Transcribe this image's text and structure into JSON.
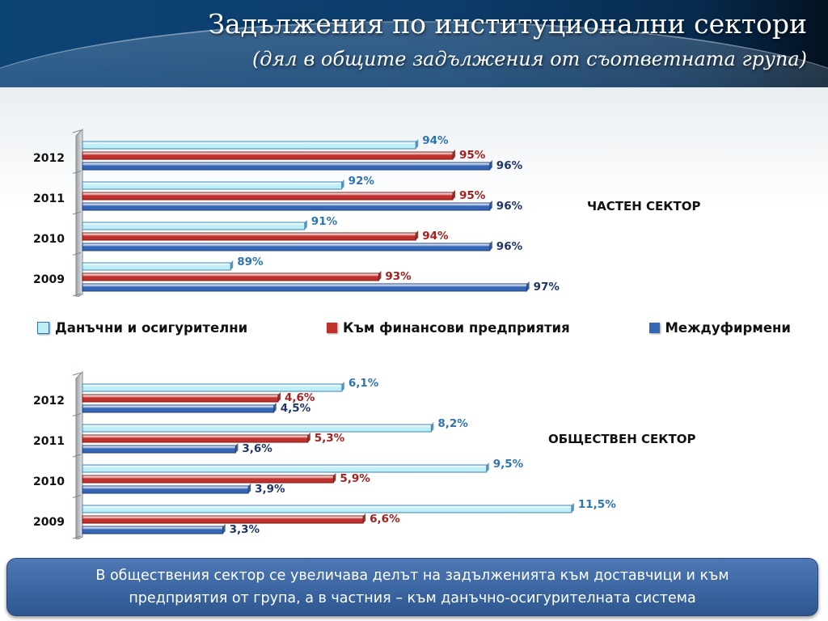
{
  "header": {
    "title": "Задължения по институционални сектори",
    "subtitle": "(дял в общите задължения от съответната група)"
  },
  "colors": {
    "series_tax": "#bfeef6",
    "series_fin": "#c0302c",
    "series_inter": "#3566b6",
    "label_tax": "#2f74ad",
    "label_fin": "#a3201e",
    "label_inter": "#1f3567"
  },
  "legend": [
    {
      "label": "Данъчни и осигурителни",
      "color": "#bfeef6"
    },
    {
      "label": "Към финансови предприятия",
      "color": "#c0302c"
    },
    {
      "label": "Междуфирмени",
      "color": "#3566b6"
    }
  ],
  "chart_data": [
    {
      "type": "bar",
      "orientation": "horizontal",
      "sector_label": "ЧАСТЕН СЕКТОР",
      "categories": [
        "2012",
        "2011",
        "2010",
        "2009"
      ],
      "series": [
        {
          "name": "Данъчни и осигурителни",
          "values": [
            94,
            92,
            91,
            89
          ],
          "labels": [
            "94%",
            "92%",
            "91%",
            "89%"
          ]
        },
        {
          "name": "Към финансови предприятия",
          "values": [
            95,
            95,
            94,
            93
          ],
          "labels": [
            "95%",
            "95%",
            "94%",
            "93%"
          ]
        },
        {
          "name": "Междуфирмени",
          "values": [
            96,
            96,
            96,
            97
          ],
          "labels": [
            "96%",
            "96%",
            "96%",
            "97%"
          ]
        }
      ],
      "grid": false
    },
    {
      "type": "bar",
      "orientation": "horizontal",
      "sector_label": "ОБЩЕСТВЕН СЕКТОР",
      "categories": [
        "2012",
        "2011",
        "2010",
        "2009"
      ],
      "series": [
        {
          "name": "Данъчни и осигурителни",
          "values": [
            6.1,
            8.2,
            9.5,
            11.5
          ],
          "labels": [
            "6,1%",
            "8,2%",
            "9,5%",
            "11,5%"
          ]
        },
        {
          "name": "Към финансови предприятия",
          "values": [
            4.6,
            5.3,
            5.9,
            6.6
          ],
          "labels": [
            "4,6%",
            "5,3%",
            "5,9%",
            "6,6%"
          ]
        },
        {
          "name": "Междуфирмени",
          "values": [
            4.5,
            3.6,
            3.9,
            3.3
          ],
          "labels": [
            "4,5%",
            "3,6%",
            "3,9%",
            "3,3%"
          ]
        }
      ],
      "grid": false
    }
  ],
  "note": {
    "line1": "В обществения сектор се увеличава делът на задълженията към доставчици и към",
    "line2": "предприятия от група, а в частния – към данъчно-осигурителната система"
  }
}
